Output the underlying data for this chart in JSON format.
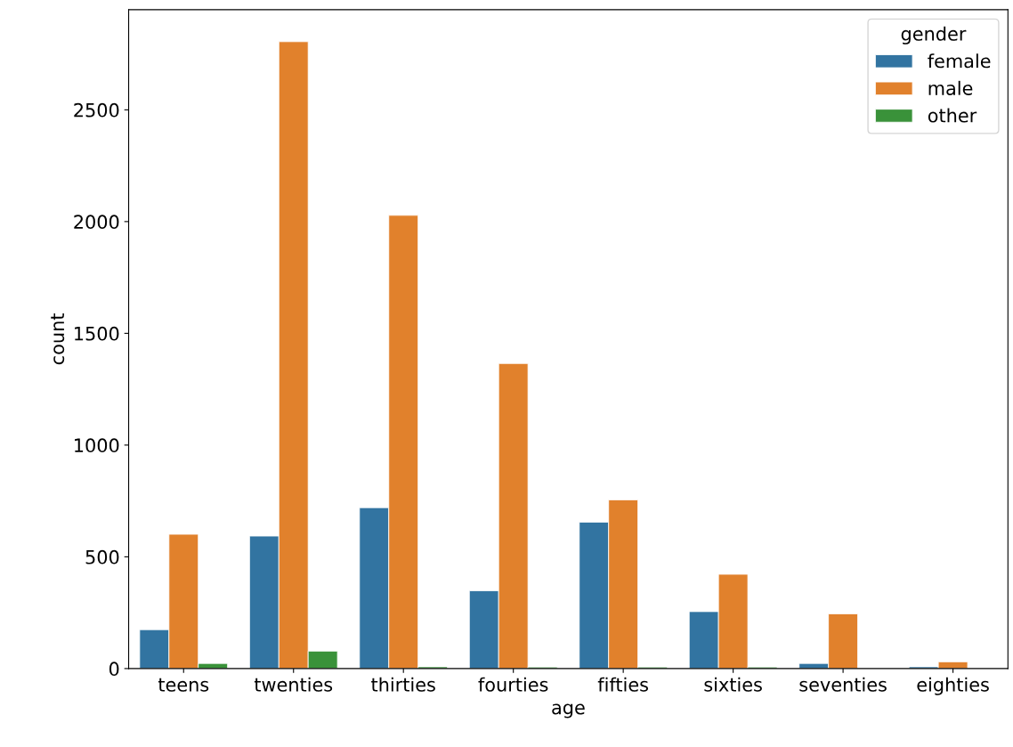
{
  "chart_data": {
    "type": "bar",
    "xlabel": "age",
    "ylabel": "count",
    "legend_title": "gender",
    "legend": "top right",
    "categories": [
      "teens",
      "twenties",
      "thirties",
      "fourties",
      "fifties",
      "sixties",
      "seventies",
      "eighties"
    ],
    "series": [
      {
        "name": "female",
        "color": "#3274a1",
        "values": [
          174,
          593,
          720,
          348,
          655,
          255,
          23,
          8
        ]
      },
      {
        "name": "male",
        "color": "#e1812c",
        "values": [
          601,
          2805,
          2028,
          1365,
          755,
          422,
          245,
          30
        ]
      },
      {
        "name": "other",
        "color": "#3a923a",
        "values": [
          23,
          78,
          8,
          7,
          7,
          7,
          null,
          null
        ]
      }
    ],
    "ylim": [
      0,
      2948
    ],
    "yticks": [
      0,
      500,
      1000,
      1500,
      2000,
      2500
    ],
    "grid": false
  }
}
